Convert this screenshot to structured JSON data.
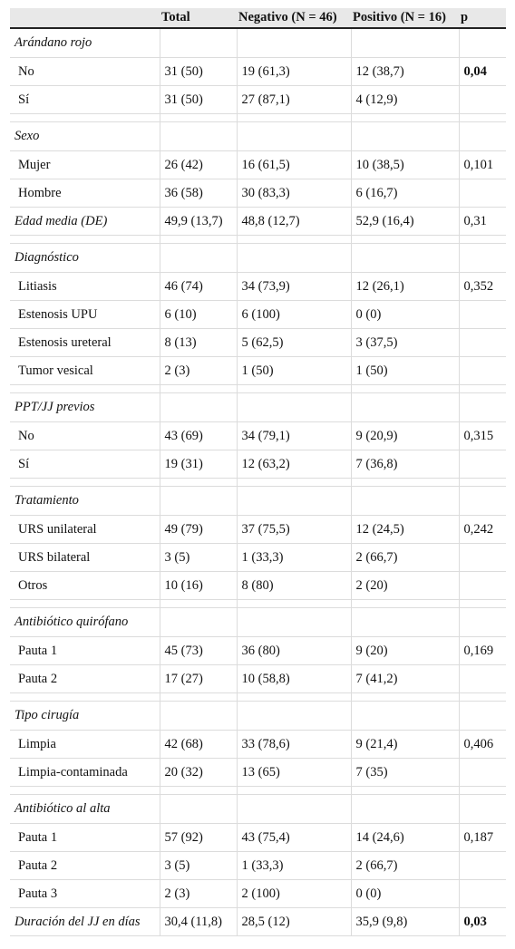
{
  "header": [
    "",
    "Total",
    "Negativo (N = 46)",
    "Positivo (N = 16)",
    "p"
  ],
  "rows": [
    {
      "kind": "cat",
      "label": "Arándano rojo"
    },
    {
      "kind": "row",
      "cells": [
        "No",
        "31 (50)",
        "19 (61,3)",
        "12 (38,7)",
        "0,04"
      ],
      "bold_p": true
    },
    {
      "kind": "row",
      "cells": [
        "Sí",
        "31 (50)",
        "27 (87,1)",
        "4 (12,9)",
        ""
      ]
    },
    {
      "kind": "spacer"
    },
    {
      "kind": "cat",
      "label": "Sexo"
    },
    {
      "kind": "row",
      "cells": [
        "Mujer",
        "26 (42)",
        "16 (61,5)",
        "10 (38,5)",
        "0,101"
      ]
    },
    {
      "kind": "row",
      "cells": [
        "Hombre",
        "36 (58)",
        "30 (83,3)",
        "6 (16,7)",
        ""
      ]
    },
    {
      "kind": "ital",
      "cells": [
        "Edad media (DE)",
        "49,9 (13,7)",
        "48,8 (12,7)",
        "52,9 (16,4)",
        "0,31"
      ]
    },
    {
      "kind": "spacer"
    },
    {
      "kind": "cat",
      "label": "Diagnóstico"
    },
    {
      "kind": "row",
      "cells": [
        "Litiasis",
        "46 (74)",
        "34 (73,9)",
        "12 (26,1)",
        "0,352"
      ]
    },
    {
      "kind": "row",
      "cells": [
        "Estenosis UPU",
        "6 (10)",
        "6 (100)",
        "0 (0)",
        ""
      ]
    },
    {
      "kind": "row",
      "cells": [
        "Estenosis ureteral",
        "8 (13)",
        "5 (62,5)",
        "3 (37,5)",
        ""
      ]
    },
    {
      "kind": "row",
      "cells": [
        "Tumor vesical",
        "2 (3)",
        "1 (50)",
        "1 (50)",
        ""
      ]
    },
    {
      "kind": "spacer"
    },
    {
      "kind": "cat",
      "label": "PPT/JJ previos"
    },
    {
      "kind": "row",
      "cells": [
        "No",
        "43 (69)",
        "34 (79,1)",
        "9 (20,9)",
        "0,315"
      ]
    },
    {
      "kind": "row",
      "cells": [
        "Sí",
        "19 (31)",
        "12 (63,2)",
        "7 (36,8)",
        ""
      ]
    },
    {
      "kind": "spacer"
    },
    {
      "kind": "cat",
      "label": "Tratamiento"
    },
    {
      "kind": "row",
      "cells": [
        "URS unilateral",
        "49 (79)",
        "37 (75,5)",
        "12 (24,5)",
        "0,242"
      ]
    },
    {
      "kind": "row",
      "cells": [
        "URS bilateral",
        "3 (5)",
        "1 (33,3)",
        "2 (66,7)",
        ""
      ]
    },
    {
      "kind": "row",
      "cells": [
        "Otros",
        "10 (16)",
        "8 (80)",
        "2 (20)",
        ""
      ]
    },
    {
      "kind": "spacer"
    },
    {
      "kind": "cat",
      "label": "Antibiótico quirófano"
    },
    {
      "kind": "row",
      "cells": [
        "Pauta 1",
        "45 (73)",
        "36 (80)",
        "9 (20)",
        "0,169"
      ]
    },
    {
      "kind": "row",
      "cells": [
        "Pauta 2",
        "17 (27)",
        "10 (58,8)",
        "7 (41,2)",
        ""
      ]
    },
    {
      "kind": "spacer"
    },
    {
      "kind": "cat",
      "label": "Tipo cirugía"
    },
    {
      "kind": "row",
      "cells": [
        "Limpia",
        "42 (68)",
        "33 (78,6)",
        "9 (21,4)",
        "0,406"
      ]
    },
    {
      "kind": "row",
      "cells": [
        "Limpia-contaminada",
        "20 (32)",
        "13 (65)",
        "7 (35)",
        ""
      ]
    },
    {
      "kind": "spacer"
    },
    {
      "kind": "cat",
      "label": "Antibiótico al alta"
    },
    {
      "kind": "row",
      "cells": [
        "Pauta 1",
        "57 (92)",
        "43 (75,4)",
        "14 (24,6)",
        "0,187"
      ]
    },
    {
      "kind": "row",
      "cells": [
        "Pauta 2",
        "3 (5)",
        "1 (33,3)",
        "2 (66,7)",
        ""
      ]
    },
    {
      "kind": "row",
      "cells": [
        "Pauta 3",
        "2 (3)",
        "2 (100)",
        "0 (0)",
        ""
      ]
    },
    {
      "kind": "ital",
      "cells": [
        "Duración del JJ en días",
        "30,4 (11,8)",
        "28,5 (12)",
        "35,9 (9,8)",
        "0,03"
      ],
      "bold_p": true
    }
  ]
}
